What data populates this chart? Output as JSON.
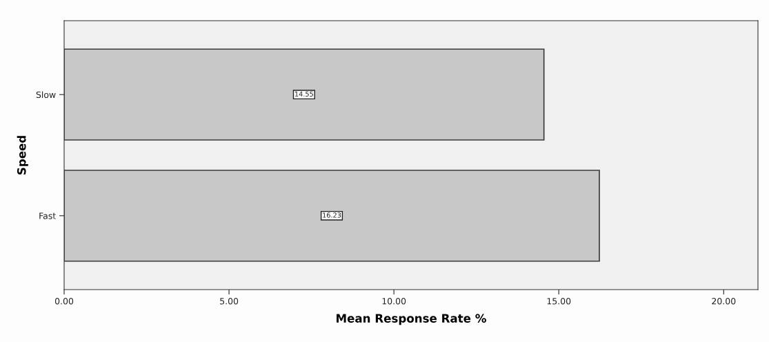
{
  "chart_data": {
    "type": "bar",
    "orientation": "horizontal",
    "categories": [
      "Slow",
      "Fast"
    ],
    "values": [
      14.55,
      16.23
    ],
    "color": "#c8c8c8",
    "data_labels": true,
    "xlabel": "Mean Response Rate %",
    "ylabel": "Speed",
    "xlim": [
      0,
      21.04
    ],
    "xticks": [
      {
        "value": 0,
        "label": "0.00"
      },
      {
        "value": 5,
        "label": "5.00"
      },
      {
        "value": 10,
        "label": "10.00"
      },
      {
        "value": 15,
        "label": "15.00"
      },
      {
        "value": 20,
        "label": "20.00"
      }
    ],
    "grid": false,
    "legend": false
  }
}
